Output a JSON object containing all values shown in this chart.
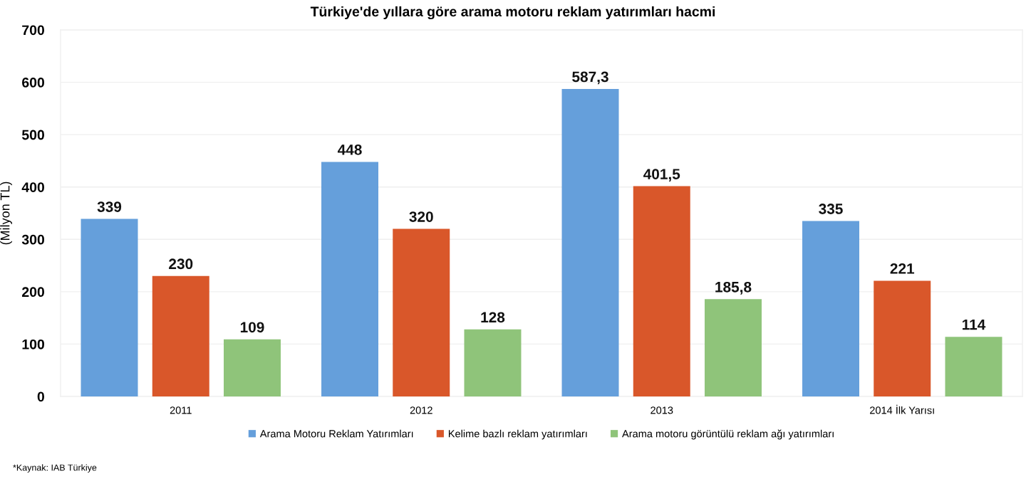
{
  "chart_data": {
    "type": "bar",
    "title": "Türkiye'de yıllara göre arama motoru reklam yatırımları hacmi",
    "ylabel": "(Milyon TL)",
    "categories": [
      "2011",
      "2012",
      "2013",
      "2014 İlk Yarısı"
    ],
    "series": [
      {
        "name": "Arama Motoru Reklam Yatırımları",
        "color": "#659fdb",
        "values": [
          339,
          448,
          587.3,
          335
        ],
        "value_labels": [
          "339",
          "448",
          "587,3",
          "335"
        ]
      },
      {
        "name": "Kelime bazlı reklam yatırımları",
        "color": "#d9572a",
        "values": [
          230,
          320,
          401.5,
          221
        ],
        "value_labels": [
          "230",
          "320",
          "401,5",
          "221"
        ]
      },
      {
        "name": "Arama motoru görüntülü reklam ağı yatırımları",
        "color": "#8fc47a",
        "values": [
          109,
          128,
          185.8,
          114
        ],
        "value_labels": [
          "109",
          "128",
          "185,8",
          "114"
        ]
      }
    ],
    "ylim": [
      0,
      700
    ],
    "yticks": [
      0,
      100,
      200,
      300,
      400,
      500,
      600,
      700
    ],
    "grid": "y",
    "legend": "bottom",
    "annotations": [
      "*Kaynak: IAB Türkiye"
    ]
  }
}
